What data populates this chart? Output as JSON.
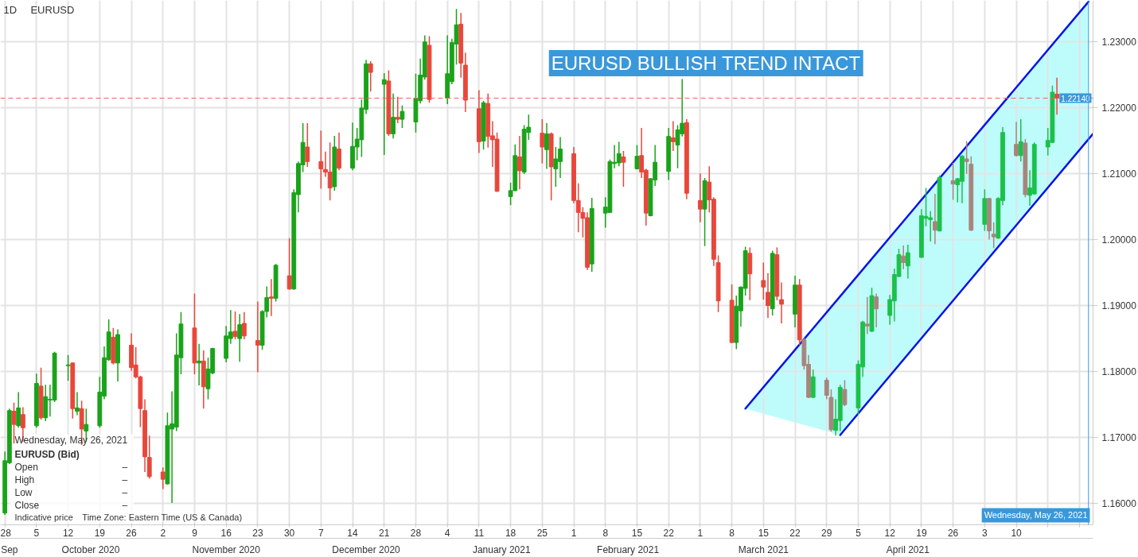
{
  "chart_data": {
    "type": "candlestick",
    "title": "EURUSD",
    "subtitle": "1D",
    "x": [
      "2020-09-28",
      "2020-09-29",
      "2020-09-30",
      "2020-10-01",
      "2020-10-02",
      "2020-10-05",
      "2020-10-06",
      "2020-10-07",
      "2020-10-08",
      "2020-10-09",
      "2020-10-12",
      "2020-10-13",
      "2020-10-14",
      "2020-10-15",
      "2020-10-16",
      "2020-10-19",
      "2020-10-20",
      "2020-10-21",
      "2020-10-22",
      "2020-10-23",
      "2020-10-26",
      "2020-10-27",
      "2020-10-28",
      "2020-10-29",
      "2020-10-30",
      "2020-11-02",
      "2020-11-03",
      "2020-11-04",
      "2020-11-05",
      "2020-11-06",
      "2020-11-09",
      "2020-11-10",
      "2020-11-11",
      "2020-11-12",
      "2020-11-13",
      "2020-11-16",
      "2020-11-17",
      "2020-11-18",
      "2020-11-19",
      "2020-11-20",
      "2020-11-23",
      "2020-11-24",
      "2020-11-25",
      "2020-11-26",
      "2020-11-27",
      "2020-11-30",
      "2020-12-01",
      "2020-12-02",
      "2020-12-03",
      "2020-12-04",
      "2020-12-07",
      "2020-12-08",
      "2020-12-09",
      "2020-12-10",
      "2020-12-11",
      "2020-12-14",
      "2020-12-15",
      "2020-12-16",
      "2020-12-17",
      "2020-12-18",
      "2020-12-21",
      "2020-12-22",
      "2020-12-23",
      "2020-12-24",
      "2020-12-25",
      "2020-12-28",
      "2020-12-29",
      "2020-12-30",
      "2020-12-31",
      "2021-01-04",
      "2021-01-05",
      "2021-01-06",
      "2021-01-07",
      "2021-01-08",
      "2021-01-11",
      "2021-01-12",
      "2021-01-13",
      "2021-01-14",
      "2021-01-15",
      "2021-01-18",
      "2021-01-19",
      "2021-01-20",
      "2021-01-21",
      "2021-01-22",
      "2021-01-25",
      "2021-01-26",
      "2021-01-27",
      "2021-01-28",
      "2021-01-29",
      "2021-02-01",
      "2021-02-02",
      "2021-02-03",
      "2021-02-04",
      "2021-02-05",
      "2021-02-08",
      "2021-02-09",
      "2021-02-10",
      "2021-02-11",
      "2021-02-12",
      "2021-02-15",
      "2021-02-16",
      "2021-02-17",
      "2021-02-18",
      "2021-02-19",
      "2021-02-22",
      "2021-02-23",
      "2021-02-24",
      "2021-02-25",
      "2021-02-26",
      "2021-03-01",
      "2021-03-02",
      "2021-03-03",
      "2021-03-04",
      "2021-03-05",
      "2021-03-08",
      "2021-03-09",
      "2021-03-10",
      "2021-03-11",
      "2021-03-12",
      "2021-03-15",
      "2021-03-16",
      "2021-03-17",
      "2021-03-18",
      "2021-03-19",
      "2021-03-22",
      "2021-03-23",
      "2021-03-24",
      "2021-03-25",
      "2021-03-26",
      "2021-03-29",
      "2021-03-30",
      "2021-03-31",
      "2021-04-01",
      "2021-04-02",
      "2021-04-05",
      "2021-04-06",
      "2021-04-07",
      "2021-04-08",
      "2021-04-09",
      "2021-04-12",
      "2021-04-13",
      "2021-04-14",
      "2021-04-15",
      "2021-04-16",
      "2021-04-19",
      "2021-04-20",
      "2021-04-21",
      "2021-04-22",
      "2021-04-23",
      "2021-04-26",
      "2021-04-27",
      "2021-04-28",
      "2021-04-29",
      "2021-04-30",
      "2021-05-03",
      "2021-05-04",
      "2021-05-05",
      "2021-05-06",
      "2021-05-07",
      "2021-05-10",
      "2021-05-11",
      "2021-05-12",
      "2021-05-13",
      "2021-05-14",
      "2021-05-17",
      "2021-05-18",
      "2021-05-19"
    ],
    "ohlc": [
      [
        1.1586,
        1.1679,
        1.1583,
        1.1665
      ],
      [
        1.1662,
        1.1744,
        1.166,
        1.1741
      ],
      [
        1.174,
        1.1753,
        1.1691,
        1.172
      ],
      [
        1.1718,
        1.1769,
        1.1715,
        1.1745
      ],
      [
        1.1735,
        1.1746,
        1.1694,
        1.1715
      ],
      [
        1.1718,
        1.1797,
        1.1715,
        1.1782
      ],
      [
        1.1778,
        1.1806,
        1.1727,
        1.173
      ],
      [
        1.173,
        1.178,
        1.1725,
        1.1762
      ],
      [
        1.1757,
        1.178,
        1.1732,
        1.1758
      ],
      [
        1.1757,
        1.183,
        1.1754,
        1.1828
      ],
      [
        1.1809,
        1.1825,
        1.1786,
        1.181
      ],
      [
        1.1813,
        1.1814,
        1.1729,
        1.1744
      ],
      [
        1.174,
        1.1769,
        1.1734,
        1.1745
      ],
      [
        1.1744,
        1.1756,
        1.1689,
        1.1713
      ],
      [
        1.171,
        1.1744,
        1.1694,
        1.172
      ],
      [
        1.1718,
        1.1792,
        1.1715,
        1.1769
      ],
      [
        1.1763,
        1.1838,
        1.1758,
        1.1821
      ],
      [
        1.1818,
        1.1879,
        1.1816,
        1.186
      ],
      [
        1.1852,
        1.1866,
        1.1811,
        1.1813
      ],
      [
        1.1813,
        1.1864,
        1.1785,
        1.1856
      ],
      [
        1.184,
        1.1858,
        1.1801,
        1.1806
      ],
      [
        1.181,
        1.1837,
        1.179,
        1.1792
      ],
      [
        1.1792,
        1.1794,
        1.1716,
        1.1744
      ],
      [
        1.1741,
        1.1758,
        1.1648,
        1.1671
      ],
      [
        1.167,
        1.1703,
        1.1638,
        1.1641
      ],
      [
        1.1648,
        1.1655,
        1.1622,
        1.1637
      ],
      [
        1.163,
        1.1738,
        1.1629,
        1.1718
      ],
      [
        1.1713,
        1.177,
        1.1601,
        1.1721
      ],
      [
        1.1716,
        1.1858,
        1.171,
        1.1825
      ],
      [
        1.1821,
        1.189,
        1.1796,
        1.1872
      ],
      [
        1.1866,
        1.1918,
        1.1796,
        1.1813
      ],
      [
        1.1813,
        1.1842,
        1.1779,
        1.1816
      ],
      [
        1.1816,
        1.1832,
        1.1744,
        1.1777
      ],
      [
        1.1774,
        1.1821,
        1.1758,
        1.1804
      ],
      [
        1.1798,
        1.1836,
        1.1796,
        1.1835
      ],
      [
        1.182,
        1.1869,
        1.1814,
        1.1854
      ],
      [
        1.185,
        1.1893,
        1.1842,
        1.186
      ],
      [
        1.1861,
        1.1891,
        1.1849,
        1.1853
      ],
      [
        1.185,
        1.1887,
        1.1815,
        1.1871
      ],
      [
        1.1873,
        1.189,
        1.1849,
        1.1854
      ],
      [
        1.1847,
        1.1906,
        1.1799,
        1.184
      ],
      [
        1.184,
        1.1893,
        1.1833,
        1.1891
      ],
      [
        1.1891,
        1.1929,
        1.1882,
        1.1912
      ],
      [
        1.1913,
        1.194,
        1.1884,
        1.1911
      ],
      [
        1.1911,
        1.1963,
        1.1906,
        1.1961
      ],
      [
        1.1945,
        1.2002,
        1.1924,
        1.1925
      ],
      [
        1.1925,
        1.2076,
        1.1924,
        1.2071
      ],
      [
        1.2068,
        1.2118,
        1.2041,
        1.2115
      ],
      [
        1.2113,
        1.2176,
        1.2102,
        1.2147
      ],
      [
        1.214,
        1.2176,
        1.211,
        1.2118
      ],
      [
        1.2118,
        1.2165,
        1.2077,
        1.2107
      ],
      [
        1.2106,
        1.2133,
        1.2095,
        1.2102
      ],
      [
        1.2102,
        1.2147,
        1.2059,
        1.2078
      ],
      [
        1.208,
        1.2157,
        1.2074,
        1.214
      ],
      [
        1.2137,
        1.2162,
        1.2105,
        1.2108
      ],
      [
        1.2108,
        1.2177,
        1.2105,
        1.2141
      ],
      [
        1.214,
        1.2169,
        1.212,
        1.2152
      ],
      [
        1.2151,
        1.2212,
        1.2125,
        1.2199
      ],
      [
        1.2197,
        1.2272,
        1.219,
        1.2266
      ],
      [
        1.2266,
        1.227,
        1.2224,
        1.2253
      ],
      [
        1.2235,
        1.2252,
        1.2128,
        1.2242
      ],
      [
        1.224,
        1.2256,
        1.2157,
        1.216
      ],
      [
        1.216,
        1.2221,
        1.2153,
        1.2185
      ],
      [
        1.2185,
        1.2216,
        1.2176,
        1.2182
      ],
      [
        1.2182,
        1.2203,
        1.2169,
        1.2194
      ],
      [
        1.2178,
        1.2251,
        1.2162,
        1.2214
      ],
      [
        1.221,
        1.2274,
        1.2206,
        1.2249
      ],
      [
        1.2246,
        1.2309,
        1.2242,
        1.2299
      ],
      [
        1.2294,
        1.2308,
        1.2207,
        1.2212
      ],
      [
        1.2214,
        1.2309,
        1.2205,
        1.2251
      ],
      [
        1.2239,
        1.2304,
        1.2235,
        1.2298
      ],
      [
        1.2296,
        1.2349,
        1.2265,
        1.2325
      ],
      [
        1.2326,
        1.2343,
        1.2245,
        1.2267
      ],
      [
        1.2264,
        1.2283,
        1.2193,
        1.2211
      ],
      [
        1.2198,
        1.2226,
        1.2131,
        1.2148
      ],
      [
        1.2149,
        1.221,
        1.2136,
        1.2207
      ],
      [
        1.2206,
        1.2221,
        1.2139,
        1.2156
      ],
      [
        1.2157,
        1.2179,
        1.211,
        1.2151
      ],
      [
        1.2152,
        1.2162,
        1.2072,
        1.2073
      ],
      [
        1.2065,
        1.2086,
        1.2052,
        1.2074
      ],
      [
        1.2074,
        1.2144,
        1.2073,
        1.2127
      ],
      [
        1.2125,
        1.2157,
        1.2076,
        1.2104
      ],
      [
        1.2102,
        1.2173,
        1.2099,
        1.2167
      ],
      [
        1.2162,
        1.2189,
        1.2151,
        1.217
      ],
      [
        1.2161,
        1.2182,
        1.2115,
        1.214
      ],
      [
        1.2136,
        1.2176,
        1.2107,
        1.216
      ],
      [
        1.216,
        1.2162,
        1.2059,
        1.211
      ],
      [
        1.2107,
        1.214,
        1.208,
        1.2122
      ],
      [
        1.2118,
        1.2155,
        1.2093,
        1.2137
      ],
      [
        1.213,
        1.214,
        1.2055,
        1.2059
      ],
      [
        1.2059,
        1.2085,
        1.2011,
        1.2041
      ],
      [
        1.2041,
        1.2049,
        1.2003,
        1.2032
      ],
      [
        1.2033,
        1.2041,
        1.1954,
        1.1958
      ],
      [
        1.1963,
        1.2063,
        1.1951,
        1.2047
      ],
      [
        1.204,
        1.2064,
        1.2018,
        1.2049
      ],
      [
        1.2041,
        1.2121,
        1.204,
        1.2118
      ],
      [
        1.2115,
        1.2143,
        1.2108,
        1.2117
      ],
      [
        1.2116,
        1.2148,
        1.2111,
        1.213
      ],
      [
        1.2125,
        1.2134,
        1.208,
        1.2117
      ],
      [
        1.2107,
        1.2143,
        1.2106,
        1.2126
      ],
      [
        1.2127,
        1.2169,
        1.2093,
        1.2102
      ],
      [
        1.2105,
        1.2107,
        1.2021,
        1.204
      ],
      [
        1.2036,
        1.2093,
        1.2035,
        1.2092
      ],
      [
        1.209,
        1.2143,
        1.2081,
        1.2117
      ],
      [
        1.2103,
        1.2169,
        1.209,
        1.2156
      ],
      [
        1.2154,
        1.2179,
        1.2134,
        1.2148
      ],
      [
        1.2143,
        1.2173,
        1.2108,
        1.2166
      ],
      [
        1.216,
        1.2243,
        1.2156,
        1.2176
      ],
      [
        1.2177,
        1.2182,
        1.2061,
        1.207
      ],
      [
        1.2059,
        1.21,
        1.2026,
        1.2046
      ],
      [
        1.2046,
        1.2093,
        1.199,
        1.2089
      ],
      [
        1.2087,
        1.2111,
        1.2041,
        1.206
      ],
      [
        1.2061,
        1.2064,
        1.196,
        1.197
      ],
      [
        1.1965,
        1.1976,
        1.189,
        1.1907
      ],
      [
        1.1908,
        1.1932,
        1.1843,
        1.1844
      ],
      [
        1.1844,
        1.1915,
        1.1834,
        1.1899
      ],
      [
        1.1892,
        1.1929,
        1.1868,
        1.1928
      ],
      [
        1.1926,
        1.1989,
        1.1915,
        1.1983
      ],
      [
        1.1979,
        1.1988,
        1.1908,
        1.1948
      ],
      [
        1.1938,
        1.1965,
        1.1909,
        1.1928
      ],
      [
        1.192,
        1.1949,
        1.1881,
        1.19
      ],
      [
        1.1895,
        1.1983,
        1.1885,
        1.1979
      ],
      [
        1.1977,
        1.1988,
        1.1908,
        1.1914
      ],
      [
        1.1909,
        1.1935,
        1.1873,
        1.1902
      ],
      [
        1.1887,
        1.1945,
        1.1867,
        1.1931
      ],
      [
        1.1931,
        1.194,
        1.184,
        1.1848
      ],
      [
        1.1848,
        1.1851,
        1.1803,
        1.1809
      ],
      [
        1.1811,
        1.1825,
        1.176,
        1.1761
      ],
      [
        1.1761,
        1.1803,
        1.176,
        1.1792
      ],
      [
        1.1787,
        1.1791,
        1.1758,
        1.1764
      ],
      [
        1.1761,
        1.1773,
        1.1709,
        1.1712
      ],
      [
        1.1711,
        1.1758,
        1.1703,
        1.1728
      ],
      [
        1.1726,
        1.178,
        1.171,
        1.1776
      ],
      [
        1.1773,
        1.1787,
        1.1748,
        1.175
      ],
      [
        1.1745,
        1.1817,
        1.1735,
        1.1811
      ],
      [
        1.1807,
        1.1877,
        1.1792,
        1.1875
      ],
      [
        1.1872,
        1.1913,
        1.1857,
        1.1869
      ],
      [
        1.1861,
        1.1927,
        1.186,
        1.1915
      ],
      [
        1.1913,
        1.1918,
        1.1867,
        1.1895
      ],
      [
        1.1885,
        1.1916,
        1.1871,
        1.1909
      ],
      [
        1.1907,
        1.1956,
        1.1876,
        1.1947
      ],
      [
        1.1944,
        1.1986,
        1.1943,
        1.1977
      ],
      [
        1.1975,
        1.1991,
        1.1955,
        1.1965
      ],
      [
        1.196,
        1.1992,
        1.1941,
        1.198
      ],
      [
        1.1973,
        1.2046,
        1.1972,
        1.2036
      ],
      [
        1.2032,
        1.2078,
        1.202,
        1.2035
      ],
      [
        1.203,
        1.2043,
        1.1997,
        1.2033
      ],
      [
        1.2027,
        1.2069,
        1.1993,
        1.2014
      ],
      [
        1.2013,
        1.2097,
        1.2012,
        1.2094
      ],
      [
        1.2089,
        1.2116,
        1.206,
        1.2084
      ],
      [
        1.2083,
        1.2093,
        1.2056,
        1.2092
      ],
      [
        1.2088,
        1.2128,
        1.2055,
        1.2126
      ],
      [
        1.2122,
        1.2149,
        1.2099,
        1.2118
      ],
      [
        1.2114,
        1.2126,
        1.2013,
        1.2014
      ],
      [
        1.2023,
        1.2076,
        1.2013,
        1.2062
      ],
      [
        1.2062,
        1.2063,
        1.2,
        1.2013
      ],
      [
        1.2008,
        1.2026,
        1.1987,
        1.2004
      ],
      [
        1.2002,
        1.2064,
        1.2001,
        1.2062
      ],
      [
        1.2059,
        1.217,
        1.2052,
        1.2162
      ],
      [
        1.2144,
        1.2178,
        1.2126,
        1.2127
      ],
      [
        1.2127,
        1.2182,
        1.2118,
        1.2148
      ],
      [
        1.2146,
        1.2152,
        1.2064,
        1.2068
      ],
      [
        1.2067,
        1.2105,
        1.2051,
        1.2078
      ],
      [
        1.2069,
        1.2147,
        1.2068,
        1.2144
      ],
      [
        1.214,
        1.2169,
        1.2127,
        1.215
      ],
      [
        1.2147,
        1.2233,
        1.2146,
        1.2223
      ],
      [
        1.222,
        1.2245,
        1.2189,
        1.2214
      ]
    ],
    "colors": [
      "#1aa31a",
      "#1aa31a",
      "#e8473b",
      "#1aa31a",
      "#e8473b",
      "#1aa31a",
      "#e8473b",
      "#1aa31a",
      "#1aa31a",
      "#1aa31a",
      "#1aa31a",
      "#e8473b",
      "#1aa31a",
      "#e8473b",
      "#1aa31a",
      "#1aa31a",
      "#1aa31a",
      "#1aa31a",
      "#e8473b",
      "#1aa31a",
      "#e8473b",
      "#e8473b",
      "#e8473b",
      "#e8473b",
      "#e8473b",
      "#e8473b",
      "#1aa31a",
      "#1aa31a",
      "#1aa31a",
      "#1aa31a",
      "#e8473b",
      "#1aa31a",
      "#e8473b",
      "#1aa31a",
      "#1aa31a",
      "#1aa31a",
      "#1aa31a",
      "#e8473b",
      "#1aa31a",
      "#e8473b",
      "#e8473b",
      "#1aa31a",
      "#1aa31a",
      "#e8473b",
      "#1aa31a",
      "#e8473b",
      "#1aa31a",
      "#1aa31a",
      "#1aa31a",
      "#e8473b",
      "#e8473b",
      "#e8473b",
      "#e8473b",
      "#1aa31a",
      "#e8473b",
      "#1aa31a",
      "#1aa31a",
      "#1aa31a",
      "#1aa31a",
      "#e8473b",
      "#1aa31a",
      "#e8473b",
      "#1aa31a",
      "#e8473b",
      "#1aa31a",
      "#1aa31a",
      "#1aa31a",
      "#1aa31a",
      "#e8473b",
      "#1aa31a",
      "#1aa31a",
      "#1aa31a",
      "#e8473b",
      "#e8473b",
      "#e8473b",
      "#1aa31a",
      "#e8473b",
      "#e8473b",
      "#e8473b",
      "#1aa31a",
      "#1aa31a",
      "#e8473b",
      "#1aa31a",
      "#1aa31a",
      "#e8473b",
      "#1aa31a",
      "#e8473b",
      "#1aa31a",
      "#1aa31a",
      "#e8473b",
      "#e8473b",
      "#e8473b",
      "#e8473b",
      "#1aa31a",
      "#1aa31a",
      "#1aa31a",
      "#1aa31a",
      "#1aa31a",
      "#e8473b",
      "#1aa31a",
      "#e8473b",
      "#e8473b",
      "#1aa31a",
      "#1aa31a",
      "#1aa31a",
      "#e8473b",
      "#1aa31a",
      "#1aa31a",
      "#e8473b",
      "#e8473b",
      "#1aa31a",
      "#e8473b",
      "#e8473b",
      "#e8473b",
      "#e8473b",
      "#1aa31a",
      "#1aa31a",
      "#1aa31a",
      "#e8473b",
      "#e8473b",
      "#e8473b",
      "#1aa31a",
      "#e8473b",
      "#e8473b",
      "#1aa31a",
      "#e8473b",
      "#a8857d",
      "#a8857d",
      "#1cc14a",
      "#a8857d",
      "#a8857d",
      "#1cc14a",
      "#1cc14a",
      "#a8857d",
      "#1cc14a",
      "#1cc14a",
      "#a8857d",
      "#1cc14a",
      "#a8857d",
      "#1cc14a",
      "#1cc14a",
      "#1cc14a",
      "#a8857d",
      "#1cc14a",
      "#1cc14a",
      "#1cc14a",
      "#1cc14a",
      "#a8857d",
      "#1cc14a",
      "#a8857d",
      "#1cc14a",
      "#1cc14a",
      "#a8857d",
      "#a8857d",
      "#1cc14a",
      "#a8857d",
      "#a8857d",
      "#1cc14a",
      "#1cc14a",
      "#a8857d",
      "#1cc14a",
      "#a8857d",
      "#1cc14a",
      "#1cc14a",
      "#1cc14a",
      "#1cc14a",
      "#e8473b"
    ],
    "series": [
      {
        "type": "line",
        "x": [
          "2021-03-11",
          "2021-04-01",
          "2021-04-18",
          "2021-05-26"
        ],
        "values": [
          1.1744,
          1.1914,
          1.2052,
          1.236
        ],
        "lower": [
          1.1744,
          1.1704,
          1.1842,
          1.2152
        ],
        "upper": [
          1.1744,
          1.1914,
          1.2052,
          1.236
        ],
        "color": "#0a14e6"
      },
      {
        "type": "line",
        "x": [
          "2021-04-01",
          "2021-04-29",
          "2021-05-27"
        ],
        "values": [
          1.1704,
          1.1932,
          1.216
        ],
        "color": "#0a14e6"
      }
    ],
    "xlim": [
      "2020-09-27",
      "2021-05-27"
    ],
    "x2lim": [
      "2020-09-27",
      "2021-05-27"
    ],
    "ylim": [
      1.1568,
      1.2362
    ],
    "xticks": [
      {
        "value": "2020-09-28",
        "label": "28"
      },
      {
        "value": "2020-10-05",
        "label": "5"
      },
      {
        "value": "2020-10-12",
        "label": "12"
      },
      {
        "value": "2020-10-19",
        "label": "19"
      },
      {
        "value": "2020-10-26",
        "label": "26"
      },
      {
        "value": "2020-11-02",
        "label": "2"
      },
      {
        "value": "2020-11-09",
        "label": "9"
      },
      {
        "value": "2020-11-16",
        "label": "16"
      },
      {
        "value": "2020-11-23",
        "label": "23"
      },
      {
        "value": "2020-11-30",
        "label": "30"
      },
      {
        "value": "2020-12-07",
        "label": "7"
      },
      {
        "value": "2020-12-14",
        "label": "14"
      },
      {
        "value": "2020-12-21",
        "label": "21"
      },
      {
        "value": "2020-12-28",
        "label": "28"
      },
      {
        "value": "2021-01-04",
        "label": "4"
      },
      {
        "value": "2021-01-11",
        "label": "11"
      },
      {
        "value": "2021-01-18",
        "label": "18"
      },
      {
        "value": "2021-01-25",
        "label": "25"
      },
      {
        "value": "2021-02-01",
        "label": "1"
      },
      {
        "value": "2021-02-08",
        "label": "8"
      },
      {
        "value": "2021-02-15",
        "label": "15"
      },
      {
        "value": "2021-02-22",
        "label": "22"
      },
      {
        "value": "2021-03-01",
        "label": "1"
      },
      {
        "value": "2021-03-08",
        "label": "8"
      },
      {
        "value": "2021-03-15",
        "label": "15"
      },
      {
        "value": "2021-03-22",
        "label": "22"
      },
      {
        "value": "2021-03-29",
        "label": "29"
      },
      {
        "value": "2021-04-05",
        "label": "5"
      },
      {
        "value": "2021-04-12",
        "label": "12"
      },
      {
        "value": "2021-04-19",
        "label": "19"
      },
      {
        "value": "2021-04-26",
        "label": "26"
      },
      {
        "value": "2021-05-03",
        "label": "3"
      },
      {
        "value": "2021-05-10",
        "label": "10"
      },
      {
        "value": "2021-05-17",
        "label": null
      },
      {
        "value": "2021-05-24",
        "label": null
      }
    ],
    "x2ticks": [
      {
        "value": "2020-09-29",
        "label": "Sep"
      },
      {
        "value": "2020-10-17",
        "label": "October 2020"
      },
      {
        "value": "2020-11-16",
        "label": "November 2020"
      },
      {
        "value": "2020-12-17",
        "label": "December 2020"
      },
      {
        "value": "2021-01-16",
        "label": "January 2021"
      },
      {
        "value": "2021-02-13",
        "label": "February 2021"
      },
      {
        "value": "2021-03-15",
        "label": "March 2021"
      },
      {
        "value": "2021-04-16",
        "label": "April 2021"
      }
    ],
    "yticks": [
      {
        "value": 1.16,
        "label": "1.16000"
      },
      {
        "value": 1.17,
        "label": "1.17000"
      },
      {
        "value": 1.18,
        "label": "1.18000"
      },
      {
        "value": 1.19,
        "label": "1.19000"
      },
      {
        "value": 1.2,
        "label": "1.20000"
      },
      {
        "value": 1.21,
        "label": "1.21000"
      },
      {
        "value": 1.22,
        "label": "1.22000"
      },
      {
        "value": 1.23,
        "label": "1.23000"
      }
    ],
    "grid": true,
    "ref_lines": [
      {
        "axis": "y",
        "value": 1.2214,
        "label": "1.22140",
        "color": "#f06262",
        "line_style": "dashed"
      },
      {
        "axis": "x",
        "value": "2021-05-26",
        "label": "Wednesday, May 26, 2021",
        "color": "#3a98da",
        "line_style": "solid"
      }
    ],
    "annotations": [
      "EURUSD BULLISH TREND INTACT",
      "Wednesday, May 26, 2021",
      "EURUSD (Bid)",
      "Open",
      "–",
      "High",
      "–",
      "Low",
      "–",
      "Close",
      "–",
      "Indicative price",
      "Time Zone: Eastern Time (US & Canada)"
    ]
  }
}
